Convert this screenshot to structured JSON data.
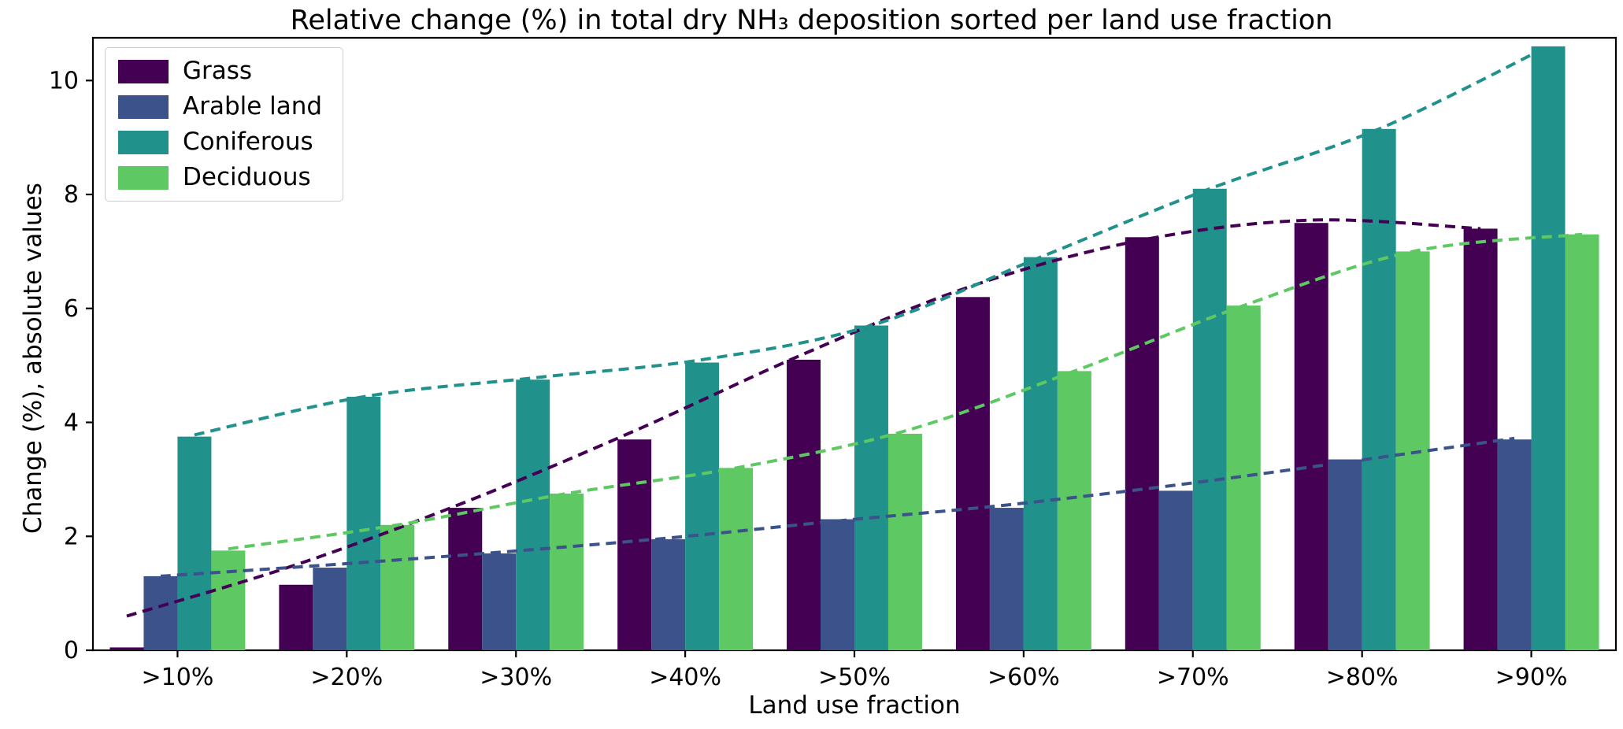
{
  "chart_data": {
    "type": "bar",
    "title": "Relative change (%) in total dry NH₃ deposition sorted per land use fraction",
    "xlabel": "Land use fraction",
    "ylabel": "Change (%), absolute values",
    "categories": [
      ">10%",
      ">20%",
      ">30%",
      ">40%",
      ">50%",
      ">60%",
      ">70%",
      ">80%",
      ">90%"
    ],
    "series": [
      {
        "name": "Grass",
        "color": "#440154",
        "values": [
          0.05,
          1.15,
          2.5,
          3.7,
          5.1,
          6.2,
          7.25,
          7.5,
          7.4
        ],
        "trend": [
          0.6,
          1.5,
          2.6,
          3.85,
          5.2,
          6.4,
          7.2,
          7.55,
          7.4
        ]
      },
      {
        "name": "Arable land",
        "color": "#3b528b",
        "values": [
          1.3,
          1.45,
          1.7,
          1.95,
          2.3,
          2.5,
          2.8,
          3.35,
          3.7
        ],
        "trend": [
          1.3,
          1.5,
          1.72,
          1.97,
          2.27,
          2.55,
          2.9,
          3.3,
          3.72
        ]
      },
      {
        "name": "Coniferous",
        "color": "#21918c",
        "values": [
          3.75,
          4.45,
          4.75,
          5.05,
          5.7,
          6.9,
          8.1,
          9.15,
          10.6
        ],
        "trend": [
          3.78,
          4.45,
          4.78,
          5.1,
          5.7,
          6.9,
          8.1,
          9.15,
          10.6
        ]
      },
      {
        "name": "Deciduous",
        "color": "#5ec962",
        "values": [
          1.75,
          2.2,
          2.75,
          3.2,
          3.8,
          4.9,
          6.05,
          7.0,
          7.3
        ],
        "trend": [
          1.78,
          2.2,
          2.75,
          3.2,
          3.85,
          4.9,
          6.05,
          7.0,
          7.3
        ]
      }
    ],
    "ylim": [
      0,
      10.75
    ],
    "yticks": [
      0,
      2,
      4,
      6,
      8,
      10
    ],
    "grid": false,
    "legend_position": "upper left",
    "line_style": "dashed smoothed trend line per series"
  }
}
